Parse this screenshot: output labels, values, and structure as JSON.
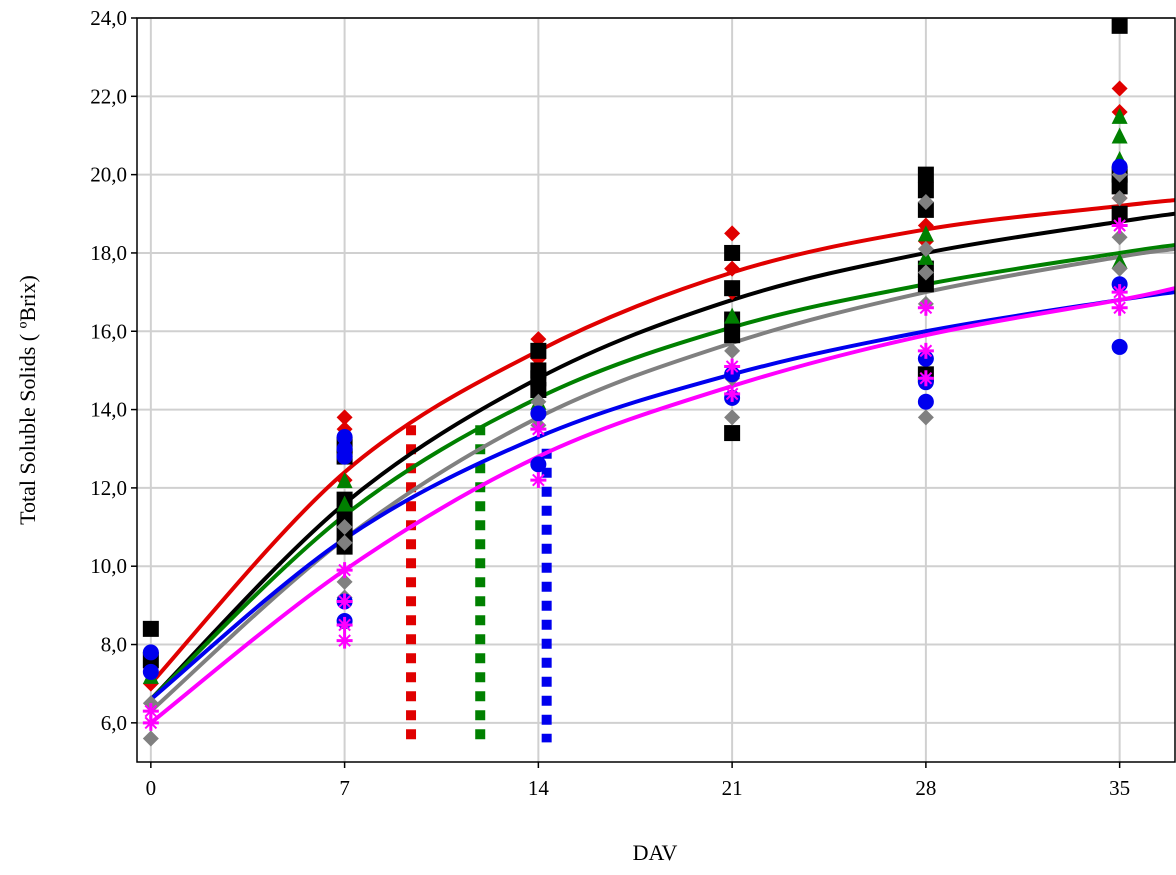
{
  "chart_data": {
    "type": "scatter",
    "title": "",
    "xlabel": "DAV",
    "ylabel": "Total Soluble Solids ( ºBrix)",
    "xlim": [
      -0.5,
      37
    ],
    "ylim": [
      5.0,
      24.0
    ],
    "x_ticks": [
      0,
      7,
      14,
      21,
      28,
      35
    ],
    "x_tick_labels": [
      "0",
      "7",
      "14",
      "21",
      "28",
      "35"
    ],
    "y_ticks": [
      6,
      8,
      10,
      12,
      14,
      16,
      18,
      20,
      22,
      24
    ],
    "y_tick_labels": [
      "6,0",
      "8,0",
      "10,0",
      "12,0",
      "14,0",
      "16,0",
      "18,0",
      "20,0",
      "22,0",
      "24,0"
    ],
    "grid": true,
    "series": [
      {
        "color": "#e00000",
        "marker": "diamond",
        "curve": [
          [
            0,
            7.0
          ],
          [
            7,
            12.4
          ],
          [
            14,
            15.5
          ],
          [
            21,
            17.5
          ],
          [
            28,
            18.6
          ],
          [
            35,
            19.2
          ],
          [
            37,
            19.35
          ]
        ],
        "points": [
          [
            0,
            7.4
          ],
          [
            0,
            7.0
          ],
          [
            7,
            13.8
          ],
          [
            7,
            13.5
          ],
          [
            7,
            12.2
          ],
          [
            14,
            15.8
          ],
          [
            14,
            15.3
          ],
          [
            14,
            14.6
          ],
          [
            21,
            18.5
          ],
          [
            21,
            17.6
          ],
          [
            21,
            17.0
          ],
          [
            28,
            18.7
          ],
          [
            28,
            18.3
          ],
          [
            28,
            17.6
          ],
          [
            35,
            22.2
          ],
          [
            35,
            21.6
          ],
          [
            35,
            20.0
          ],
          [
            35,
            19.4
          ]
        ]
      },
      {
        "color": "#000000",
        "marker": "square",
        "curve": [
          [
            0,
            6.6
          ],
          [
            7,
            11.6
          ],
          [
            14,
            14.8
          ],
          [
            21,
            16.8
          ],
          [
            28,
            18.0
          ],
          [
            35,
            18.8
          ],
          [
            37,
            19.0
          ]
        ],
        "points": [
          [
            0,
            8.4
          ],
          [
            0,
            7.6
          ],
          [
            7,
            13.1
          ],
          [
            7,
            12.8
          ],
          [
            7,
            11.7
          ],
          [
            7,
            11.2
          ],
          [
            7,
            10.8
          ],
          [
            7,
            10.5
          ],
          [
            14,
            15.5
          ],
          [
            14,
            15.0
          ],
          [
            14,
            14.8
          ],
          [
            14,
            14.5
          ],
          [
            21,
            18.0
          ],
          [
            21,
            17.1
          ],
          [
            21,
            16.3
          ],
          [
            21,
            15.9
          ],
          [
            21,
            13.4
          ],
          [
            28,
            20.0
          ],
          [
            28,
            19.6
          ],
          [
            28,
            19.1
          ],
          [
            28,
            17.6
          ],
          [
            28,
            17.2
          ],
          [
            28,
            14.9
          ],
          [
            35,
            23.8
          ],
          [
            35,
            20.0
          ],
          [
            35,
            19.7
          ],
          [
            35,
            19.0
          ]
        ]
      },
      {
        "color": "#008000",
        "marker": "triangle",
        "curve": [
          [
            0,
            6.6
          ],
          [
            7,
            11.3
          ],
          [
            14,
            14.3
          ],
          [
            21,
            16.1
          ],
          [
            28,
            17.2
          ],
          [
            35,
            18.0
          ],
          [
            37,
            18.2
          ]
        ],
        "points": [
          [
            0,
            7.2
          ],
          [
            7,
            12.2
          ],
          [
            7,
            11.6
          ],
          [
            14,
            14.2
          ],
          [
            21,
            16.4
          ],
          [
            28,
            18.5
          ],
          [
            28,
            17.9
          ],
          [
            35,
            21.5
          ],
          [
            35,
            21.0
          ],
          [
            35,
            20.4
          ],
          [
            35,
            17.8
          ]
        ]
      },
      {
        "color": "#808080",
        "marker": "diamond",
        "curve": [
          [
            0,
            6.3
          ],
          [
            7,
            10.7
          ],
          [
            14,
            13.8
          ],
          [
            21,
            15.7
          ],
          [
            28,
            17.0
          ],
          [
            35,
            17.9
          ],
          [
            37,
            18.1
          ]
        ],
        "points": [
          [
            0,
            6.5
          ],
          [
            0,
            5.6
          ],
          [
            7,
            11.0
          ],
          [
            7,
            10.6
          ],
          [
            7,
            9.6
          ],
          [
            7,
            9.2
          ],
          [
            14,
            14.2
          ],
          [
            14,
            13.6
          ],
          [
            21,
            15.5
          ],
          [
            21,
            14.8
          ],
          [
            21,
            13.8
          ],
          [
            28,
            19.3
          ],
          [
            28,
            18.1
          ],
          [
            28,
            17.5
          ],
          [
            28,
            16.7
          ],
          [
            28,
            13.8
          ],
          [
            35,
            20.0
          ],
          [
            35,
            19.4
          ],
          [
            35,
            18.4
          ],
          [
            35,
            17.6
          ]
        ]
      },
      {
        "color": "#0000ee",
        "marker": "circle",
        "curve": [
          [
            0,
            6.6
          ],
          [
            7,
            10.7
          ],
          [
            14,
            13.3
          ],
          [
            21,
            14.9
          ],
          [
            28,
            16.0
          ],
          [
            35,
            16.8
          ],
          [
            37,
            17.0
          ]
        ],
        "points": [
          [
            0,
            7.8
          ],
          [
            0,
            7.3
          ],
          [
            7,
            13.3
          ],
          [
            7,
            13.0
          ],
          [
            7,
            12.8
          ],
          [
            7,
            9.1
          ],
          [
            7,
            8.6
          ],
          [
            14,
            13.9
          ],
          [
            14,
            12.6
          ],
          [
            21,
            14.9
          ],
          [
            21,
            14.3
          ],
          [
            28,
            15.3
          ],
          [
            28,
            14.7
          ],
          [
            28,
            14.2
          ],
          [
            35,
            20.2
          ],
          [
            35,
            17.2
          ],
          [
            35,
            15.6
          ]
        ]
      },
      {
        "color": "#ff00ff",
        "marker": "plus",
        "curve": [
          [
            0,
            6.0
          ],
          [
            7,
            9.9
          ],
          [
            14,
            12.8
          ],
          [
            21,
            14.6
          ],
          [
            28,
            15.9
          ],
          [
            35,
            16.8
          ],
          [
            37,
            17.1
          ]
        ],
        "points": [
          [
            0,
            6.3
          ],
          [
            0,
            6.0
          ],
          [
            7,
            9.9
          ],
          [
            7,
            9.1
          ],
          [
            7,
            8.5
          ],
          [
            7,
            8.1
          ],
          [
            14,
            13.5
          ],
          [
            14,
            12.2
          ],
          [
            21,
            15.1
          ],
          [
            21,
            14.4
          ],
          [
            28,
            16.6
          ],
          [
            28,
            15.5
          ],
          [
            28,
            14.8
          ],
          [
            35,
            18.7
          ],
          [
            35,
            17.0
          ],
          [
            35,
            16.6
          ]
        ]
      }
    ],
    "vertical_markers": [
      {
        "color": "#e00000",
        "x": 9.4,
        "y_top": 13.6
      },
      {
        "color": "#008000",
        "x": 11.9,
        "y_top": 13.6
      },
      {
        "color": "#0000ee",
        "x": 14.3,
        "y_top": 13.0
      }
    ]
  }
}
